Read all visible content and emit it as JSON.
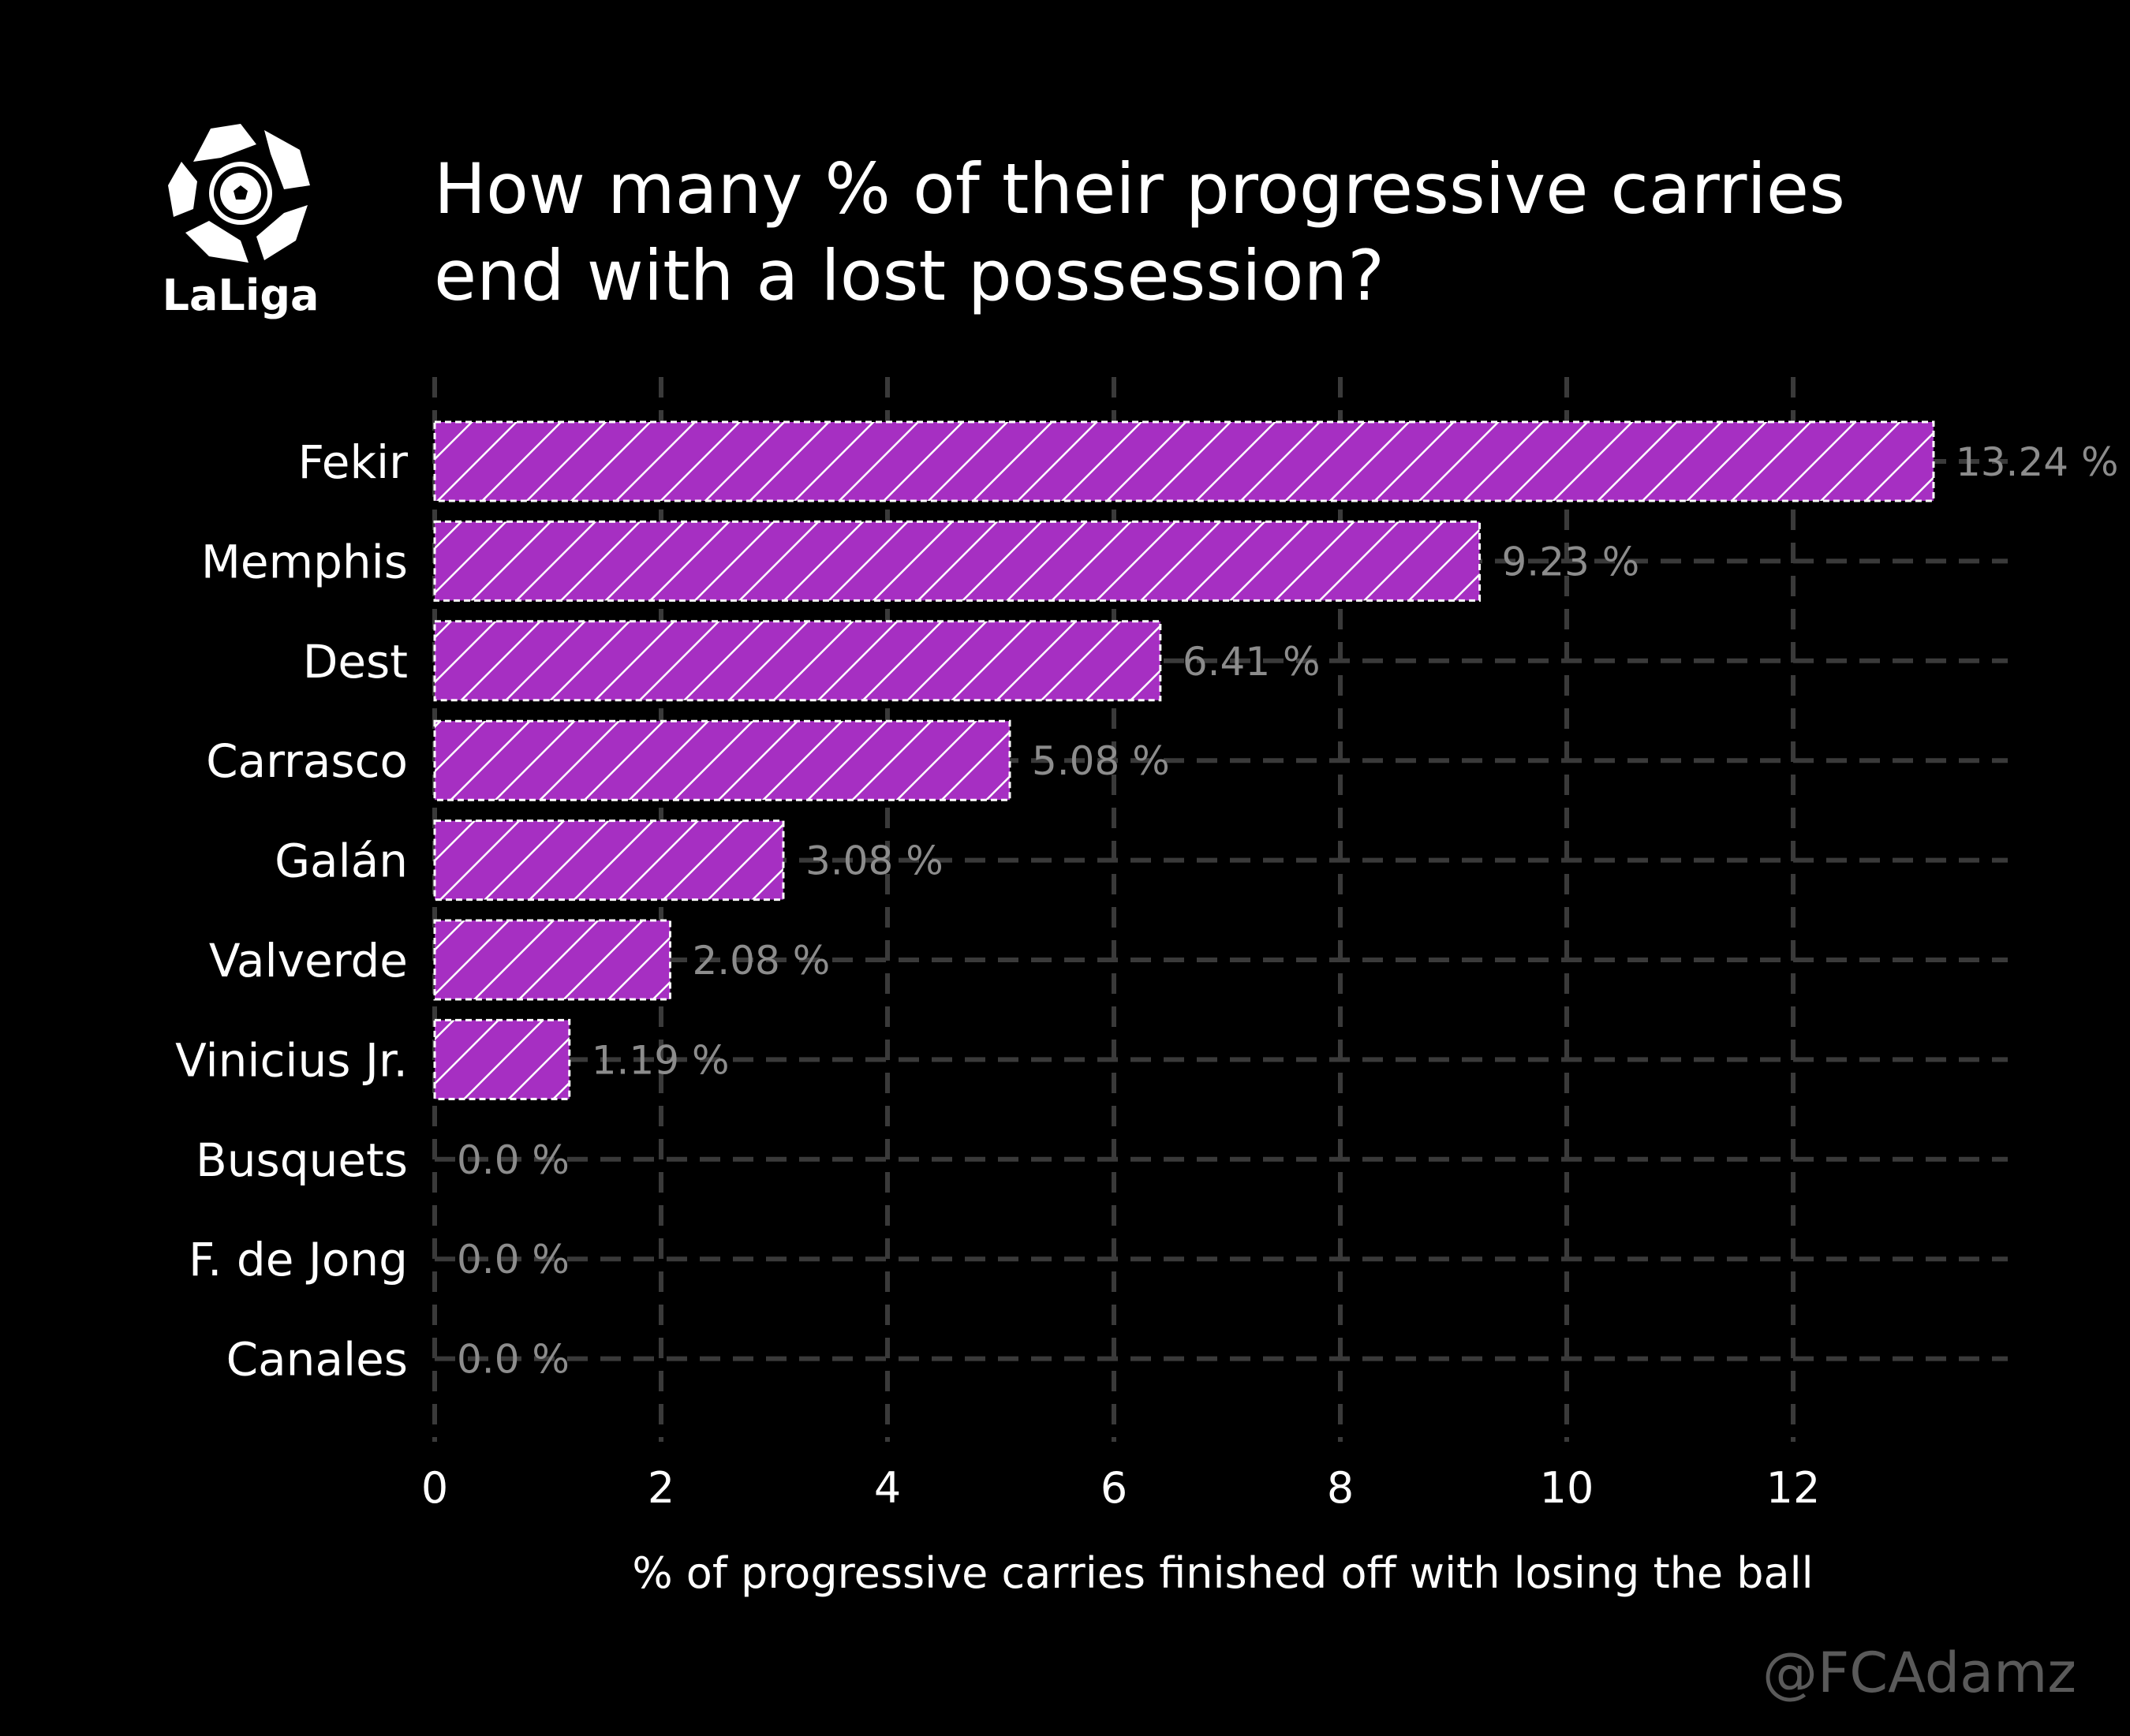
{
  "logo": {
    "text": "LaLiga"
  },
  "watermark": "@FCAdamz",
  "colors": {
    "background": "#000000",
    "bar": "#a62fc2",
    "bar_hatch": "#ffffff",
    "grid": "#3a3a3a",
    "value_text": "#8c8c8c",
    "text": "#ffffff"
  },
  "chart_data": {
    "type": "bar",
    "orientation": "horizontal",
    "title": "How many % of their progressive carries end with a lost possession?",
    "title_lines": [
      "How many % of their progressive carries",
      "end with a lost possession?"
    ],
    "xlabel": "% of progressive carries finished off with losing the ball",
    "ylabel": "",
    "categories": [
      "Fekir",
      "Memphis",
      "Dest",
      "Carrasco",
      "Galán",
      "Valverde",
      "Vinicius Jr.",
      "Busquets",
      "F. de Jong",
      "Canales"
    ],
    "values": [
      13.24,
      9.23,
      6.41,
      5.08,
      3.08,
      2.08,
      1.19,
      0.0,
      0.0,
      0.0
    ],
    "value_labels": [
      "13.24 %",
      "9.23 %",
      "6.41 %",
      "5.08 %",
      "3.08 %",
      "2.08 %",
      "1.19 %",
      "0.0 %",
      "0.0 %",
      "0.0 %"
    ],
    "xlim": [
      0,
      13.9
    ],
    "xticks": [
      0,
      2,
      4,
      6,
      8,
      10,
      12
    ],
    "xtick_labels": [
      "0",
      "2",
      "4",
      "6",
      "8",
      "10",
      "12"
    ],
    "grid": true,
    "grid_style": "dashed",
    "bar_pattern": "diagonal-hatch"
  }
}
